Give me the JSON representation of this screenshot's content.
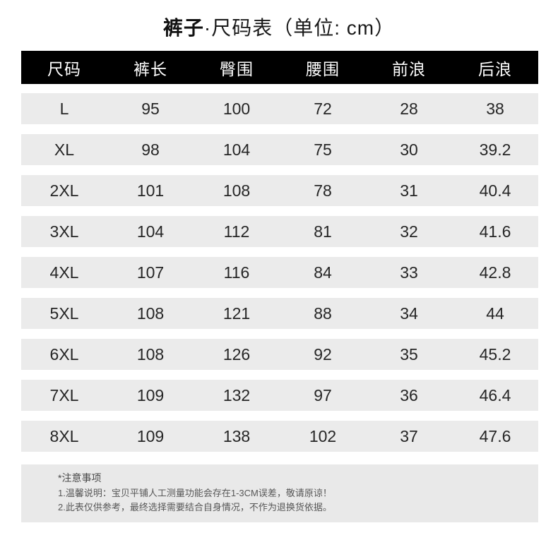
{
  "title": {
    "product": "裤子",
    "suffix": "·尺码表（单位: cm）"
  },
  "chart_data": {
    "type": "table",
    "title": "裤子·尺码表（单位: cm）",
    "columns": [
      "尺码",
      "裤长",
      "臀围",
      "腰围",
      "前浪",
      "后浪"
    ],
    "rows": [
      [
        "L",
        "95",
        "100",
        "72",
        "28",
        "38"
      ],
      [
        "XL",
        "98",
        "104",
        "75",
        "30",
        "39.2"
      ],
      [
        "2XL",
        "101",
        "108",
        "78",
        "31",
        "40.4"
      ],
      [
        "3XL",
        "104",
        "112",
        "81",
        "32",
        "41.6"
      ],
      [
        "4XL",
        "107",
        "116",
        "84",
        "33",
        "42.8"
      ],
      [
        "5XL",
        "108",
        "121",
        "88",
        "34",
        "44"
      ],
      [
        "6XL",
        "108",
        "126",
        "92",
        "35",
        "45.2"
      ],
      [
        "7XL",
        "109",
        "132",
        "97",
        "36",
        "46.4"
      ],
      [
        "8XL",
        "109",
        "138",
        "102",
        "37",
        "47.6"
      ]
    ]
  },
  "notes": {
    "heading": "*注意事项",
    "items": [
      "1.温馨说明：宝贝平铺人工测量功能会存在1-3CM误差，敬请原谅！",
      "2.此表仅供参考，最终选择需要结合自身情况，不作为退换货依据。"
    ]
  },
  "colors": {
    "header_bg": "#000000",
    "header_text": "#ffffff",
    "row_bg": "#ebebeb",
    "cell_text": "#262626",
    "notes_bg": "#e9e9e9",
    "notes_text": "#555555"
  }
}
